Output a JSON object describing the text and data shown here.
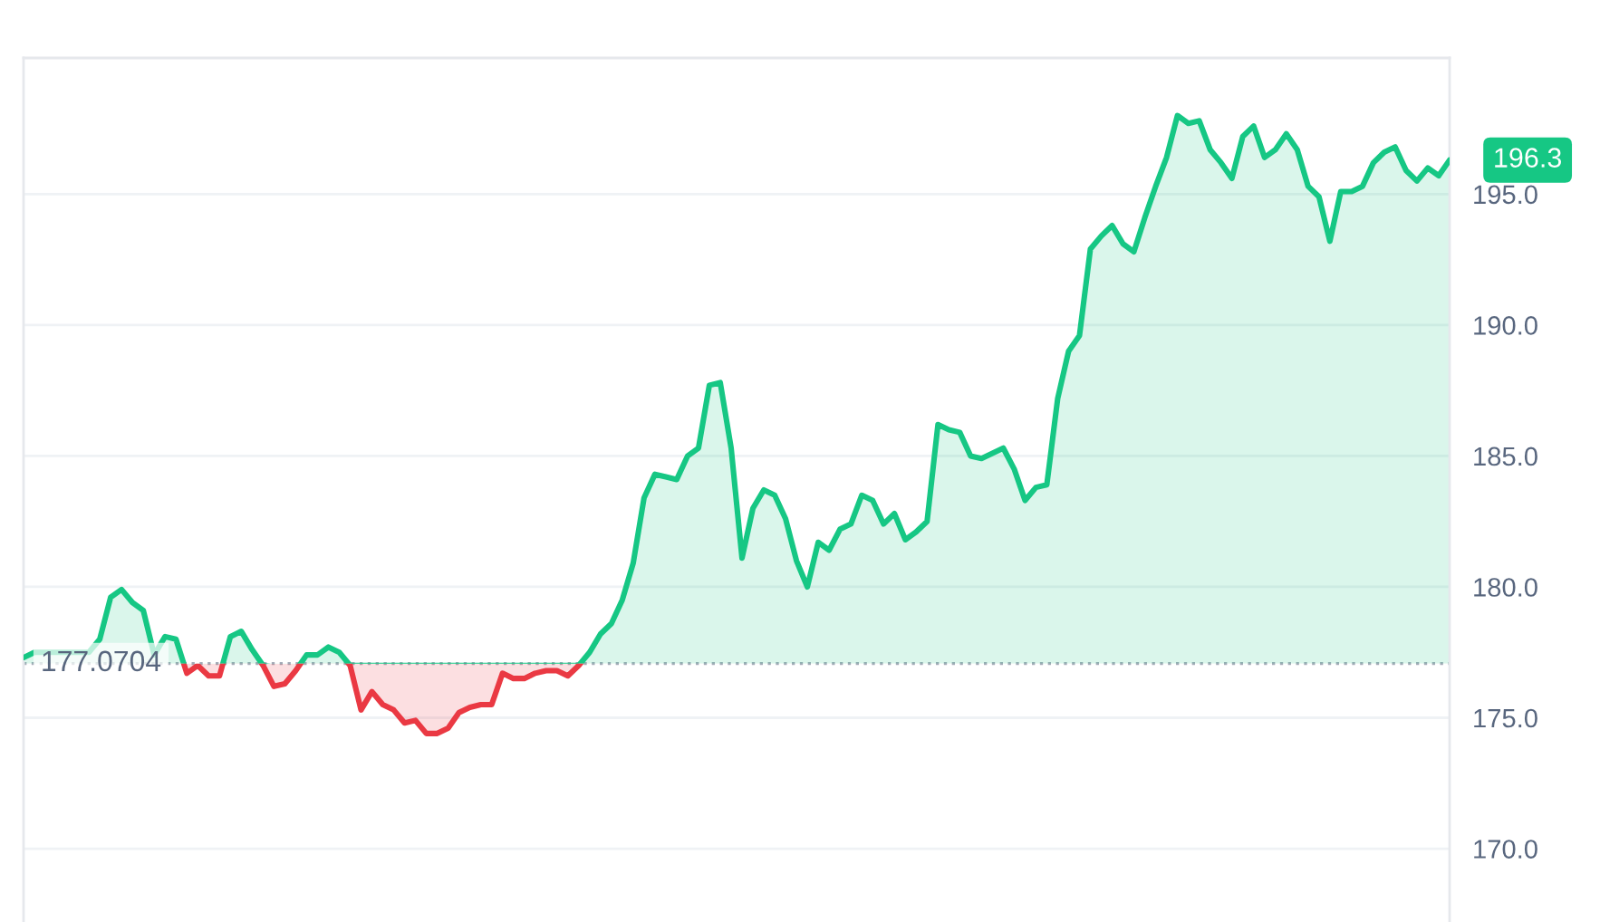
{
  "chart_data": {
    "type": "area",
    "categories": [
      null,
      null,
      null,
      null,
      null,
      null,
      null,
      null,
      null,
      null,
      null,
      null,
      null,
      null,
      null,
      null,
      null,
      null,
      null,
      null,
      null,
      null,
      null,
      null,
      null,
      null,
      null,
      null,
      null,
      null,
      null,
      null,
      null,
      null,
      null,
      null,
      null,
      null,
      null,
      null,
      null,
      null,
      null,
      null,
      null,
      null,
      null,
      null,
      null,
      null,
      null,
      null,
      null,
      null,
      null,
      null,
      null,
      null,
      null,
      null,
      null,
      null,
      null,
      null,
      null,
      null,
      null,
      null,
      null,
      null,
      null,
      null,
      null,
      null,
      null,
      null,
      null,
      null,
      null,
      null,
      null,
      null,
      null,
      null,
      null,
      null,
      null,
      null,
      null,
      null,
      null,
      null,
      null,
      null,
      null,
      null,
      null,
      null,
      null,
      null,
      null,
      null,
      null,
      null,
      null,
      null,
      null,
      null,
      null,
      null,
      null,
      null,
      null,
      null,
      null,
      null,
      null,
      null,
      null,
      null,
      null,
      null,
      null,
      null,
      null,
      null,
      null,
      null,
      null,
      null,
      null,
      null
    ],
    "series": [
      {
        "color": "#16c784",
        "values": [
          177.3,
          177.5,
          177.5,
          177.5,
          177.5,
          177.5,
          177.5,
          178.0,
          179.6,
          179.9,
          179.4,
          179.1,
          177.4,
          178.1,
          178.0,
          176.7,
          null,
          null,
          176.6,
          178.1,
          178.3,
          177.6,
          177.0,
          null,
          null,
          176.8,
          177.4,
          177.4,
          177.7,
          177.5,
          177.0,
          null,
          null,
          null,
          null,
          null,
          null,
          null,
          null,
          null,
          null,
          null,
          null,
          null,
          null,
          null,
          null,
          null,
          null,
          null,
          null,
          177.0,
          177.5,
          178.2,
          178.6,
          179.5,
          180.9,
          183.4,
          184.3,
          184.2,
          184.1,
          185.0,
          185.3,
          187.7,
          187.8,
          185.3,
          181.1,
          183.0,
          183.7,
          183.5,
          182.6,
          181.0,
          180.0,
          181.7,
          181.4,
          182.2,
          182.4,
          183.5,
          183.3,
          182.4,
          182.8,
          181.8,
          182.1,
          182.5,
          186.2,
          186.0,
          185.9,
          185.0,
          184.9,
          185.1,
          185.3,
          184.5,
          183.3,
          183.8,
          183.9,
          187.2,
          189.0,
          189.6,
          192.9,
          193.4,
          193.8,
          193.1,
          192.8,
          194.1,
          195.3,
          196.4,
          198.0,
          197.7,
          197.8,
          196.7,
          196.2,
          195.6,
          197.2,
          197.6,
          196.4,
          196.7,
          197.3,
          196.7,
          195.3,
          194.9,
          193.2,
          195.1,
          195.1,
          195.3,
          196.2,
          196.6,
          196.8,
          195.9,
          195.5,
          196.0,
          195.7,
          196.3
        ],
        "value_labels": [
          null,
          null,
          null,
          null,
          null,
          null,
          null,
          null,
          null,
          null,
          null,
          null,
          null,
          null,
          null,
          null,
          null,
          null,
          null,
          null,
          null,
          null,
          null,
          null,
          null,
          null,
          null,
          null,
          null,
          null,
          null,
          null,
          null,
          null,
          null,
          null,
          null,
          null,
          null,
          null,
          null,
          null,
          null,
          null,
          null,
          null,
          null,
          null,
          null,
          null,
          null,
          null,
          null,
          null,
          null,
          null,
          null,
          null,
          null,
          null,
          null,
          null,
          null,
          null,
          null,
          null,
          null,
          null,
          null,
          null,
          null,
          null,
          null,
          null,
          null,
          null,
          null,
          null,
          null,
          null,
          null,
          null,
          null,
          null,
          null,
          null,
          null,
          null,
          null,
          null,
          null,
          null,
          null,
          null,
          null,
          null,
          null,
          null,
          null,
          null,
          null,
          null,
          null,
          null,
          null,
          null,
          null,
          null,
          null,
          null,
          null,
          null,
          null,
          null,
          null,
          null,
          null,
          null,
          null,
          null,
          null,
          null,
          null,
          null,
          null,
          null,
          null,
          null,
          null,
          null,
          null,
          "196.3"
        ]
      },
      {
        "color": "#ea3943",
        "values": [
          null,
          null,
          null,
          null,
          null,
          null,
          null,
          null,
          null,
          null,
          null,
          null,
          null,
          null,
          178.0,
          176.7,
          177.0,
          176.6,
          176.6,
          178.1,
          null,
          177.6,
          177.0,
          176.2,
          176.3,
          176.8,
          177.4,
          null,
          null,
          177.5,
          177.0,
          175.3,
          176.0,
          175.5,
          175.3,
          174.8,
          174.9,
          174.4,
          174.4,
          174.6,
          175.2,
          175.4,
          175.5,
          175.5,
          176.7,
          176.5,
          176.5,
          176.7,
          176.8,
          176.8,
          176.6,
          177.0,
          177.5,
          null,
          null,
          null,
          null,
          null,
          null,
          null,
          null,
          null,
          null,
          null,
          null,
          null,
          null,
          null,
          null,
          null,
          null,
          null,
          null,
          null,
          null,
          null,
          null,
          null,
          null,
          null,
          null,
          null,
          null,
          null,
          null,
          null,
          null,
          null,
          null,
          null,
          null,
          null,
          null,
          null,
          null,
          null,
          null,
          null,
          null,
          null,
          null,
          null,
          null,
          null,
          null,
          null,
          null,
          null,
          null,
          null,
          null,
          null,
          null,
          null,
          null,
          null,
          null,
          null,
          null,
          null,
          null,
          null,
          null,
          null,
          null,
          null,
          null,
          null,
          null,
          null,
          null,
          null
        ]
      }
    ],
    "ylim": [
      167.2,
      200.2
    ],
    "yticks": [
      {
        "value": 170,
        "label": "170.0"
      },
      {
        "value": 175,
        "label": "175.0"
      },
      {
        "value": 180,
        "label": "180.0"
      },
      {
        "value": 185,
        "label": "185.0"
      },
      {
        "value": 190,
        "label": "190.0"
      },
      {
        "value": 195,
        "label": "195.0"
      }
    ],
    "ref_lines": [
      {
        "axis": "y",
        "value": 177.0704,
        "label": "177.0704",
        "color": "#a6acb9",
        "line_style": "dotted"
      }
    ],
    "grid": "y",
    "tick_labels": "y"
  }
}
